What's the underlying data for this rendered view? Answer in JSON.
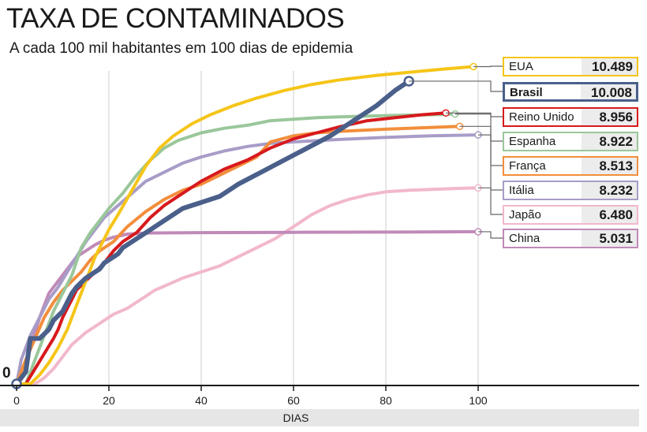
{
  "title": "TAXA DE CONTAMINADOS",
  "subtitle": "A cada 100 mil habitantes em 100 dias de epidemia",
  "chart_data": {
    "type": "line",
    "xlabel": "DIAS",
    "ylabel": "",
    "x_ticks": [
      "0",
      "20",
      "40",
      "60",
      "80",
      "100"
    ],
    "y_ticks": [
      "0"
    ],
    "xlim": [
      0,
      100
    ],
    "ylim": [
      0,
      12300
    ],
    "grid": "vertical",
    "legend_position": "right",
    "series": [
      {
        "name": "EUA",
        "value_label": "10.489",
        "color": "#f5c518",
        "end_x": 99,
        "points": [
          [
            0,
            0
          ],
          [
            3,
            0
          ],
          [
            5,
            300
          ],
          [
            7,
            700
          ],
          [
            9,
            1200
          ],
          [
            11,
            1800
          ],
          [
            13,
            2600
          ],
          [
            15,
            3400
          ],
          [
            17,
            4200
          ],
          [
            20,
            5100
          ],
          [
            22,
            5600
          ],
          [
            25,
            6400
          ],
          [
            28,
            7200
          ],
          [
            31,
            7800
          ],
          [
            34,
            8200
          ],
          [
            38,
            8600
          ],
          [
            42,
            8900
          ],
          [
            47,
            9200
          ],
          [
            52,
            9450
          ],
          [
            58,
            9700
          ],
          [
            64,
            9900
          ],
          [
            70,
            10050
          ],
          [
            78,
            10200
          ],
          [
            85,
            10300
          ],
          [
            92,
            10400
          ],
          [
            99,
            10489
          ]
        ]
      },
      {
        "name": "Brasil",
        "value_label": "10.008",
        "color": "#4a5f8a",
        "end_x": 85,
        "points": [
          [
            0,
            0
          ],
          [
            2,
            400
          ],
          [
            3,
            1500
          ],
          [
            5,
            1500
          ],
          [
            7,
            1800
          ],
          [
            8,
            2100
          ],
          [
            10,
            2400
          ],
          [
            11,
            2700
          ],
          [
            12,
            3000
          ],
          [
            13,
            3200
          ],
          [
            15,
            3500
          ],
          [
            17,
            3700
          ],
          [
            18,
            3800
          ],
          [
            19,
            4000
          ],
          [
            20,
            4100
          ],
          [
            22,
            4300
          ],
          [
            23,
            4500
          ],
          [
            25,
            4700
          ],
          [
            27,
            4900
          ],
          [
            30,
            5200
          ],
          [
            33,
            5500
          ],
          [
            36,
            5800
          ],
          [
            40,
            6000
          ],
          [
            44,
            6200
          ],
          [
            48,
            6600
          ],
          [
            53,
            7000
          ],
          [
            58,
            7400
          ],
          [
            63,
            7800
          ],
          [
            68,
            8200
          ],
          [
            73,
            8700
          ],
          [
            78,
            9200
          ],
          [
            82,
            9700
          ],
          [
            85,
            10008
          ]
        ]
      },
      {
        "name": "Reino Unido",
        "value_label": "8.956",
        "color": "#d7191c",
        "end_x": 93,
        "points": [
          [
            0,
            0
          ],
          [
            2,
            0
          ],
          [
            4,
            500
          ],
          [
            6,
            1000
          ],
          [
            8,
            1500
          ],
          [
            9,
            1800
          ],
          [
            10,
            2200
          ],
          [
            11,
            2500
          ],
          [
            12,
            2800
          ],
          [
            13,
            3100
          ],
          [
            15,
            3400
          ],
          [
            17,
            3700
          ],
          [
            19,
            4000
          ],
          [
            21,
            4400
          ],
          [
            23,
            4700
          ],
          [
            26,
            5000
          ],
          [
            29,
            5500
          ],
          [
            32,
            5900
          ],
          [
            36,
            6300
          ],
          [
            40,
            6700
          ],
          [
            45,
            7100
          ],
          [
            50,
            7400
          ],
          [
            55,
            7800
          ],
          [
            60,
            8100
          ],
          [
            65,
            8300
          ],
          [
            70,
            8500
          ],
          [
            76,
            8700
          ],
          [
            82,
            8800
          ],
          [
            88,
            8900
          ],
          [
            93,
            8956
          ]
        ]
      },
      {
        "name": "Espanha",
        "value_label": "8.922",
        "color": "#9ac79a",
        "end_x": 95,
        "points": [
          [
            0,
            0
          ],
          [
            2,
            0
          ],
          [
            4,
            800
          ],
          [
            6,
            1600
          ],
          [
            8,
            2400
          ],
          [
            10,
            3000
          ],
          [
            12,
            3600
          ],
          [
            14,
            4500
          ],
          [
            16,
            5000
          ],
          [
            18,
            5400
          ],
          [
            20,
            5800
          ],
          [
            23,
            6300
          ],
          [
            26,
            6900
          ],
          [
            29,
            7400
          ],
          [
            32,
            7800
          ],
          [
            35,
            8050
          ],
          [
            40,
            8300
          ],
          [
            45,
            8450
          ],
          [
            50,
            8550
          ],
          [
            55,
            8700
          ],
          [
            60,
            8750
          ],
          [
            65,
            8800
          ],
          [
            70,
            8830
          ],
          [
            80,
            8870
          ],
          [
            90,
            8900
          ],
          [
            95,
            8922
          ]
        ]
      },
      {
        "name": "França",
        "value_label": "8.513",
        "color": "#f28e3c",
        "end_x": 96,
        "points": [
          [
            0,
            0
          ],
          [
            2,
            800
          ],
          [
            4,
            1500
          ],
          [
            6,
            2200
          ],
          [
            8,
            2700
          ],
          [
            10,
            3100
          ],
          [
            12,
            3400
          ],
          [
            14,
            3700
          ],
          [
            16,
            4100
          ],
          [
            18,
            4400
          ],
          [
            21,
            4700
          ],
          [
            24,
            5200
          ],
          [
            28,
            5700
          ],
          [
            32,
            6100
          ],
          [
            36,
            6400
          ],
          [
            40,
            6600
          ],
          [
            44,
            6900
          ],
          [
            48,
            7200
          ],
          [
            52,
            7500
          ],
          [
            55,
            8000
          ],
          [
            60,
            8200
          ],
          [
            65,
            8300
          ],
          [
            70,
            8350
          ],
          [
            80,
            8420
          ],
          [
            90,
            8480
          ],
          [
            96,
            8513
          ]
        ]
      },
      {
        "name": "Itália",
        "value_label": "8.232",
        "color": "#a89cc8",
        "end_x": 100,
        "points": [
          [
            0,
            0
          ],
          [
            1,
            800
          ],
          [
            3,
            1600
          ],
          [
            5,
            2200
          ],
          [
            7,
            2800
          ],
          [
            9,
            3200
          ],
          [
            11,
            3700
          ],
          [
            13,
            4200
          ],
          [
            15,
            4700
          ],
          [
            17,
            5100
          ],
          [
            19,
            5500
          ],
          [
            22,
            5900
          ],
          [
            25,
            6300
          ],
          [
            28,
            6700
          ],
          [
            32,
            7000
          ],
          [
            36,
            7300
          ],
          [
            40,
            7500
          ],
          [
            45,
            7700
          ],
          [
            50,
            7850
          ],
          [
            55,
            7950
          ],
          [
            60,
            8000
          ],
          [
            70,
            8080
          ],
          [
            80,
            8150
          ],
          [
            90,
            8200
          ],
          [
            100,
            8232
          ]
        ]
      },
      {
        "name": "Japão",
        "value_label": "6.480",
        "color": "#f2b8cb",
        "end_x": 100,
        "points": [
          [
            0,
            0
          ],
          [
            4,
            0
          ],
          [
            6,
            200
          ],
          [
            8,
            500
          ],
          [
            10,
            900
          ],
          [
            12,
            1300
          ],
          [
            15,
            1700
          ],
          [
            18,
            2000
          ],
          [
            21,
            2300
          ],
          [
            24,
            2500
          ],
          [
            27,
            2800
          ],
          [
            30,
            3100
          ],
          [
            33,
            3300
          ],
          [
            36,
            3500
          ],
          [
            40,
            3700
          ],
          [
            44,
            3900
          ],
          [
            48,
            4200
          ],
          [
            52,
            4500
          ],
          [
            56,
            4800
          ],
          [
            60,
            5200
          ],
          [
            64,
            5600
          ],
          [
            68,
            5900
          ],
          [
            72,
            6100
          ],
          [
            76,
            6250
          ],
          [
            80,
            6350
          ],
          [
            85,
            6400
          ],
          [
            90,
            6430
          ],
          [
            95,
            6460
          ],
          [
            100,
            6480
          ]
        ]
      },
      {
        "name": "China",
        "value_label": "5.031",
        "color": "#c08ab8",
        "end_x": 100,
        "points": [
          [
            0,
            0
          ],
          [
            1,
            300
          ],
          [
            3,
            1200
          ],
          [
            5,
            2200
          ],
          [
            7,
            3000
          ],
          [
            9,
            3400
          ],
          [
            11,
            3800
          ],
          [
            13,
            4200
          ],
          [
            15,
            4400
          ],
          [
            17,
            4600
          ],
          [
            19,
            4750
          ],
          [
            21,
            4850
          ],
          [
            24,
            4950
          ],
          [
            27,
            4980
          ],
          [
            30,
            4990
          ],
          [
            40,
            5000
          ],
          [
            60,
            5010
          ],
          [
            80,
            5020
          ],
          [
            100,
            5031
          ]
        ]
      }
    ]
  }
}
